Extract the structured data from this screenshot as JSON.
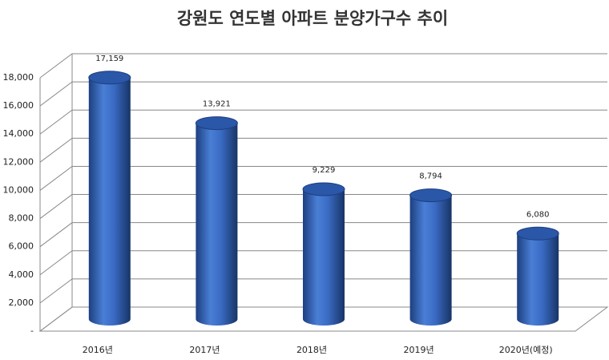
{
  "chart_data": {
    "type": "bar",
    "title": "강원도 연도별 아파트 분양가구수 추이",
    "categories": [
      "2016년",
      "2017년",
      "2018년",
      "2019년",
      "2020년(예정)"
    ],
    "values": [
      17159,
      13921,
      9229,
      8794,
      6080
    ],
    "value_labels": [
      "17,159",
      "13,921",
      "9,229",
      "8,794",
      "6,080"
    ],
    "color": "#3a6bc4",
    "ylim": [
      0,
      18000
    ],
    "yticks": [
      {
        "value": 0,
        "label": "-"
      },
      {
        "value": 2000,
        "label": "2,000"
      },
      {
        "value": 4000,
        "label": "4,000"
      },
      {
        "value": 6000,
        "label": "6,000"
      },
      {
        "value": 8000,
        "label": "8,000"
      },
      {
        "value": 10000,
        "label": "10,000"
      },
      {
        "value": 12000,
        "label": "12,000"
      },
      {
        "value": 14000,
        "label": "14,000"
      },
      {
        "value": 16000,
        "label": "16,000"
      },
      {
        "value": 18000,
        "label": "18,000"
      }
    ],
    "grid": true
  }
}
